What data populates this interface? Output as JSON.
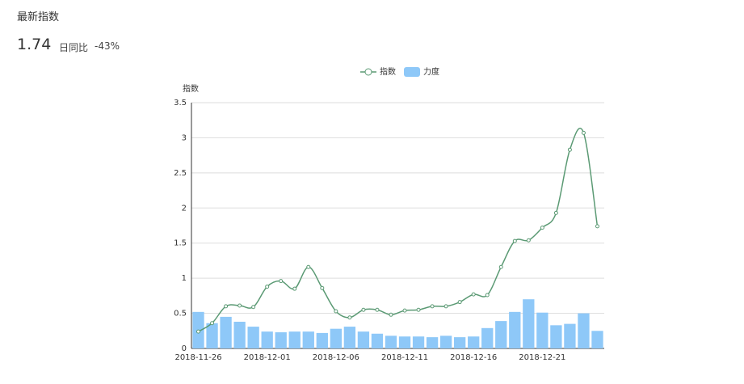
{
  "header": {
    "title": "最新指数",
    "value": "1.74",
    "change_label": "日同比",
    "change": "-43%"
  },
  "chart_data": {
    "type": "line-bar",
    "y_label": "指数",
    "categories": [
      "2018-11-26",
      null,
      null,
      null,
      null,
      "2018-12-01",
      null,
      null,
      null,
      null,
      "2018-12-06",
      null,
      null,
      null,
      null,
      "2018-12-11",
      null,
      null,
      null,
      null,
      "2018-12-16",
      null,
      null,
      null,
      null,
      "2018-12-21",
      null,
      null,
      null,
      null
    ],
    "series": [
      {
        "name": "指数",
        "type": "line",
        "color": "#5b9a74",
        "values": [
          0.24,
          0.36,
          0.6,
          0.61,
          0.59,
          0.88,
          0.96,
          0.85,
          1.16,
          0.86,
          0.53,
          0.44,
          0.55,
          0.55,
          0.48,
          0.54,
          0.55,
          0.6,
          0.6,
          0.66,
          0.77,
          0.76,
          1.16,
          1.53,
          1.54,
          1.72,
          1.93,
          2.83,
          3.07,
          1.74
        ]
      },
      {
        "name": "力度",
        "type": "bar",
        "color": "#8ec8f8",
        "values": [
          0.52,
          0.36,
          0.45,
          0.38,
          0.31,
          0.24,
          0.23,
          0.24,
          0.24,
          0.22,
          0.28,
          0.31,
          0.24,
          0.21,
          0.18,
          0.17,
          0.17,
          0.16,
          0.18,
          0.16,
          0.17,
          0.29,
          0.39,
          0.52,
          0.7,
          0.51,
          0.33,
          0.35,
          0.5,
          0.25
        ]
      }
    ],
    "ylim": [
      0,
      3.5
    ],
    "yticks": [
      0,
      0.5,
      1,
      1.5,
      2,
      2.5,
      3,
      3.5
    ],
    "grid": true
  }
}
